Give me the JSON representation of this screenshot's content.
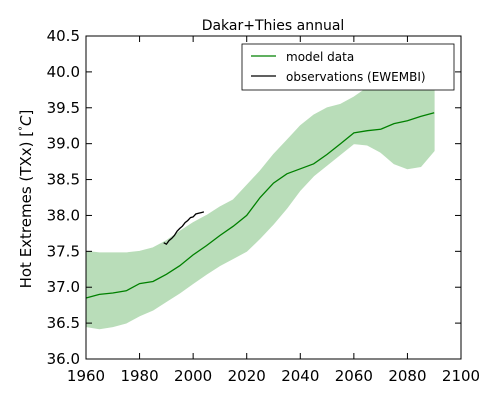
{
  "chart_data": {
    "type": "line",
    "title": "Dakar+Thies annual",
    "xlabel": "",
    "ylabel_main": "Hot Extremes (TXx) [",
    "ylabel_degree": "°",
    "ylabel_unit": "C",
    "ylabel_end": "]",
    "xlim": [
      1960,
      2100
    ],
    "ylim": [
      36.0,
      40.5
    ],
    "xticks": [
      1960,
      1980,
      2000,
      2020,
      2040,
      2060,
      2080,
      2100
    ],
    "xtick_labels": [
      "1960",
      "1980",
      "2000",
      "2020",
      "2040",
      "2060",
      "2080",
      "2100"
    ],
    "yticks": [
      36.0,
      36.5,
      37.0,
      37.5,
      38.0,
      38.5,
      39.0,
      39.5,
      40.0,
      40.5
    ],
    "ytick_labels": [
      "36.0",
      "36.5",
      "37.0",
      "37.5",
      "38.0",
      "38.5",
      "39.0",
      "39.5",
      "40.0",
      "40.5"
    ],
    "grid": false,
    "legend_position": "top-right",
    "band": {
      "x": [
        1960,
        1965,
        1970,
        1975,
        1980,
        1985,
        1990,
        1995,
        2000,
        2005,
        2010,
        2015,
        2020,
        2025,
        2030,
        2035,
        2040,
        2045,
        2050,
        2055,
        2060,
        2065,
        2070,
        2075,
        2080,
        2085,
        2090
      ],
      "lower": [
        36.45,
        36.42,
        36.45,
        36.5,
        36.6,
        36.68,
        36.8,
        36.92,
        37.05,
        37.18,
        37.3,
        37.4,
        37.5,
        37.68,
        37.88,
        38.1,
        38.35,
        38.55,
        38.7,
        38.85,
        39.0,
        38.98,
        38.88,
        38.72,
        38.65,
        38.68,
        38.9
      ],
      "upper": [
        37.5,
        37.48,
        37.48,
        37.48,
        37.5,
        37.55,
        37.65,
        37.78,
        37.9,
        38.0,
        38.12,
        38.22,
        38.42,
        38.62,
        38.85,
        39.05,
        39.25,
        39.4,
        39.5,
        39.55,
        39.65,
        39.78,
        39.88,
        39.95,
        40.0,
        40.05,
        40.0
      ],
      "color": "#b9ddb9"
    },
    "series": [
      {
        "name": "model data",
        "color": "#008000",
        "x": [
          1960,
          1965,
          1970,
          1975,
          1980,
          1985,
          1990,
          1995,
          2000,
          2005,
          2010,
          2015,
          2020,
          2025,
          2030,
          2035,
          2040,
          2045,
          2050,
          2055,
          2060,
          2065,
          2070,
          2075,
          2080,
          2085,
          2090
        ],
        "values": [
          36.85,
          36.9,
          36.92,
          36.95,
          37.05,
          37.08,
          37.18,
          37.3,
          37.45,
          37.58,
          37.72,
          37.85,
          38.0,
          38.25,
          38.45,
          38.58,
          38.65,
          38.72,
          38.85,
          39.0,
          39.15,
          39.18,
          39.2,
          39.28,
          39.32,
          39.38,
          39.43
        ]
      },
      {
        "name": "observations (EWEMBI)",
        "color": "#000000",
        "x": [
          1989,
          1990,
          1991,
          1992,
          1993,
          1994,
          1995,
          1996,
          1997,
          1998,
          1999,
          2000,
          2001,
          2002,
          2003,
          2004
        ],
        "values": [
          37.62,
          37.6,
          37.65,
          37.68,
          37.72,
          37.78,
          37.82,
          37.85,
          37.9,
          37.93,
          37.97,
          37.98,
          38.02,
          38.03,
          38.04,
          38.05
        ]
      }
    ]
  }
}
